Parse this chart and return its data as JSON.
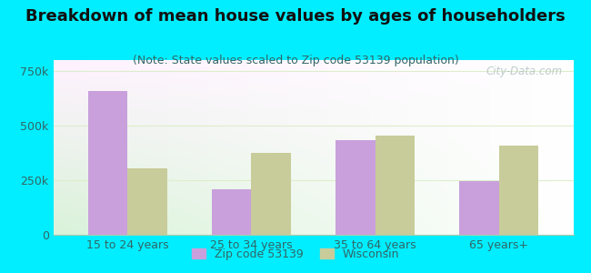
{
  "title": "Breakdown of mean house values by ages of householders",
  "subtitle": "(Note: State values scaled to Zip code 53139 population)",
  "categories": [
    "15 to 24 years",
    "25 to 34 years",
    "35 to 64 years",
    "65 years+"
  ],
  "zip_values": [
    660000,
    210000,
    435000,
    245000
  ],
  "wi_values": [
    305000,
    375000,
    455000,
    410000
  ],
  "zip_color": "#c9a0dc",
  "wi_color": "#c8cc9a",
  "background_outer": "#00eeff",
  "background_inner_tl": "#e8f5e8",
  "background_inner_br": "#f8fef8",
  "ylim": [
    0,
    800000
  ],
  "yticks": [
    0,
    250000,
    500000,
    750000
  ],
  "ytick_labels": [
    "0",
    "250k",
    "500k",
    "750k"
  ],
  "legend_zip_label": "Zip code 53139",
  "legend_wi_label": "Wisconsin",
  "watermark": "City-Data.com",
  "title_fontsize": 13,
  "subtitle_fontsize": 9,
  "tick_fontsize": 9,
  "grid_color": "#ddeecc",
  "title_color": "#111111",
  "subtitle_color": "#336666",
  "tick_color": "#336666"
}
